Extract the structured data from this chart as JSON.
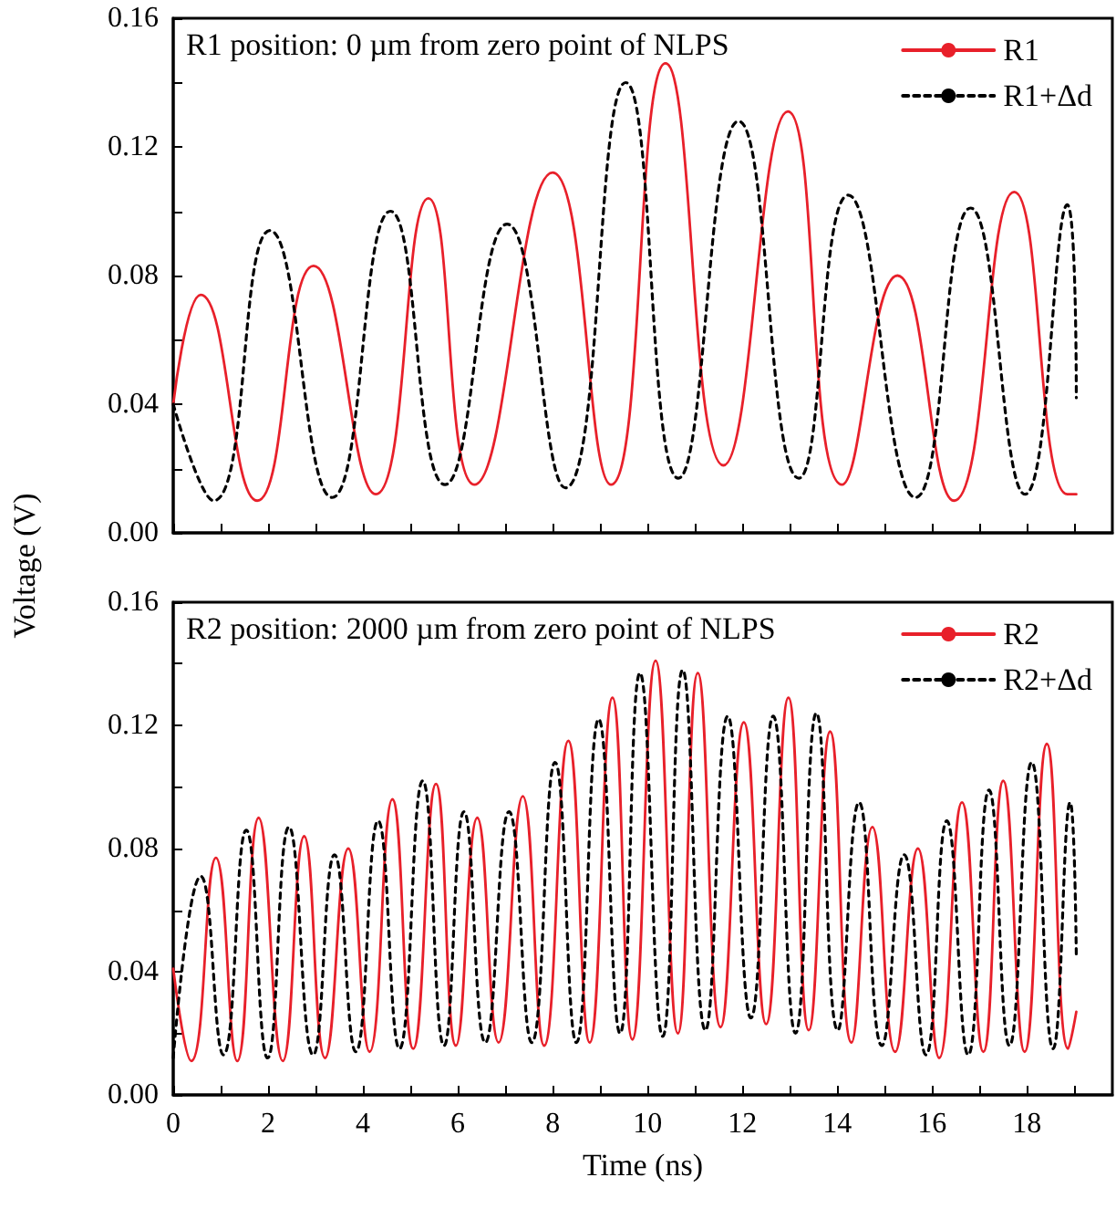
{
  "chart_data": [
    {
      "type": "line",
      "annotations": [
        "R1 position: 0 µm from zero point of NLPS"
      ],
      "ylabel": "Voltage (V)",
      "xlim": [
        0,
        19.8
      ],
      "xticks": [
        0,
        {
          "value": 1,
          "label": null
        },
        2,
        {
          "value": 3,
          "label": null
        },
        4,
        {
          "value": 5,
          "label": null
        },
        6,
        {
          "value": 7,
          "label": null
        },
        8,
        {
          "value": 9,
          "label": null
        },
        10,
        {
          "value": 11,
          "label": null
        },
        12,
        {
          "value": 13,
          "label": null
        },
        14,
        {
          "value": 15,
          "label": null
        },
        16,
        {
          "value": 17,
          "label": null
        },
        18,
        {
          "value": 19,
          "label": null
        }
      ],
      "ylim": [
        0,
        0.16
      ],
      "yticks": [
        "0.00",
        {
          "value": 0.02,
          "label": null
        },
        {
          "value": 0.04,
          "label": "0.04"
        },
        {
          "value": 0.06,
          "label": null
        },
        {
          "value": 0.08,
          "label": "0.08"
        },
        {
          "value": 0.1,
          "label": null
        },
        {
          "value": 0.12,
          "label": "0.12"
        },
        {
          "value": 0.14,
          "label": null
        },
        {
          "value": 0.16,
          "label": "0.16"
        }
      ],
      "tick_labels": "y",
      "legend": "top right",
      "grid": false,
      "marker": "none",
      "series": [
        {
          "name": "R1",
          "color": "#e8202a",
          "line_style": "solid",
          "x": [
            0,
            0.58,
            1.77,
            2.96,
            4.27,
            5.38,
            6.35,
            8.0,
            9.23,
            10.38,
            11.6,
            12.96,
            14.1,
            15.27,
            16.46,
            17.73,
            18.85,
            19.04
          ],
          "values": [
            0.04,
            0.074,
            0.01,
            0.083,
            0.012,
            0.104,
            0.015,
            0.112,
            0.015,
            0.146,
            0.021,
            0.131,
            0.015,
            0.08,
            0.01,
            0.106,
            0.012,
            0.012
          ]
        },
        {
          "name": "R1+Δd",
          "color": "#000000",
          "line_style": "dashed",
          "x": [
            0,
            0.85,
            2.04,
            3.35,
            4.58,
            5.73,
            7.04,
            8.27,
            9.54,
            10.65,
            11.92,
            13.19,
            14.23,
            15.65,
            16.81,
            17.96,
            18.85,
            19.04
          ],
          "values": [
            0.04,
            0.01,
            0.094,
            0.011,
            0.1,
            0.015,
            0.096,
            0.014,
            0.14,
            0.017,
            0.128,
            0.017,
            0.105,
            0.011,
            0.101,
            0.012,
            0.102,
            0.042
          ]
        }
      ]
    },
    {
      "type": "line",
      "annotations": [
        "R2 position: 2000 µm from zero point of NLPS"
      ],
      "xlabel": "Time (ns)",
      "xlim": [
        0,
        19.8
      ],
      "xticks": [
        0,
        {
          "value": 1,
          "label": null
        },
        2,
        {
          "value": 3,
          "label": null
        },
        4,
        {
          "value": 5,
          "label": null
        },
        6,
        {
          "value": 7,
          "label": null
        },
        8,
        {
          "value": 9,
          "label": null
        },
        10,
        {
          "value": 11,
          "label": null
        },
        12,
        {
          "value": 13,
          "label": null
        },
        14,
        {
          "value": 15,
          "label": null
        },
        16,
        {
          "value": 17,
          "label": null
        },
        18,
        {
          "value": 19,
          "label": null
        }
      ],
      "ylim": [
        0,
        0.16
      ],
      "yticks": [
        "0.00",
        {
          "value": 0.02,
          "label": null
        },
        {
          "value": 0.04,
          "label": "0.04"
        },
        {
          "value": 0.06,
          "label": null
        },
        {
          "value": 0.08,
          "label": "0.08"
        },
        {
          "value": 0.1,
          "label": null
        },
        {
          "value": 0.12,
          "label": "0.12"
        },
        {
          "value": 0.14,
          "label": null
        },
        {
          "value": 0.16,
          "label": "0.16"
        }
      ],
      "legend": "top right",
      "grid": false,
      "marker": "none",
      "series": [
        {
          "name": "R2",
          "color": "#e8202a",
          "line_style": "solid",
          "x": [
            0,
            0.38,
            0.9,
            1.35,
            1.8,
            2.31,
            2.76,
            3.2,
            3.69,
            4.14,
            4.62,
            5.06,
            5.54,
            5.96,
            6.41,
            6.86,
            7.37,
            7.82,
            8.33,
            8.78,
            9.26,
            9.68,
            10.17,
            10.64,
            11.06,
            11.54,
            12.03,
            12.5,
            12.97,
            13.4,
            13.85,
            14.3,
            14.74,
            15.22,
            15.7,
            16.15,
            16.63,
            17.08,
            17.5,
            17.95,
            18.42,
            18.87,
            19.04
          ],
          "values": [
            0.041,
            0.011,
            0.077,
            0.011,
            0.09,
            0.011,
            0.084,
            0.012,
            0.08,
            0.014,
            0.096,
            0.015,
            0.101,
            0.016,
            0.09,
            0.017,
            0.097,
            0.016,
            0.115,
            0.017,
            0.129,
            0.018,
            0.141,
            0.02,
            0.137,
            0.022,
            0.121,
            0.023,
            0.129,
            0.021,
            0.118,
            0.017,
            0.087,
            0.014,
            0.08,
            0.012,
            0.095,
            0.014,
            0.102,
            0.014,
            0.114,
            0.015,
            0.027
          ]
        },
        {
          "name": "R2+Δd",
          "color": "#000000",
          "line_style": "dashed",
          "x": [
            0,
            0.58,
            1.06,
            1.54,
            1.99,
            2.44,
            2.95,
            3.4,
            3.85,
            4.32,
            4.77,
            5.26,
            5.71,
            6.13,
            6.58,
            7.08,
            7.56,
            8.05,
            8.5,
            8.97,
            9.42,
            9.84,
            10.32,
            10.74,
            11.22,
            11.69,
            12.18,
            12.65,
            13.12,
            13.56,
            14.01,
            14.46,
            14.94,
            15.41,
            15.87,
            16.31,
            16.76,
            17.2,
            17.63,
            18.1,
            18.55,
            18.91,
            19.04
          ],
          "values": [
            0.012,
            0.071,
            0.013,
            0.086,
            0.012,
            0.087,
            0.013,
            0.078,
            0.014,
            0.089,
            0.015,
            0.102,
            0.016,
            0.092,
            0.017,
            0.092,
            0.017,
            0.108,
            0.017,
            0.122,
            0.02,
            0.137,
            0.019,
            0.138,
            0.021,
            0.123,
            0.025,
            0.123,
            0.02,
            0.124,
            0.021,
            0.095,
            0.016,
            0.078,
            0.013,
            0.089,
            0.013,
            0.099,
            0.016,
            0.108,
            0.015,
            0.095,
            0.045
          ]
        }
      ]
    }
  ]
}
